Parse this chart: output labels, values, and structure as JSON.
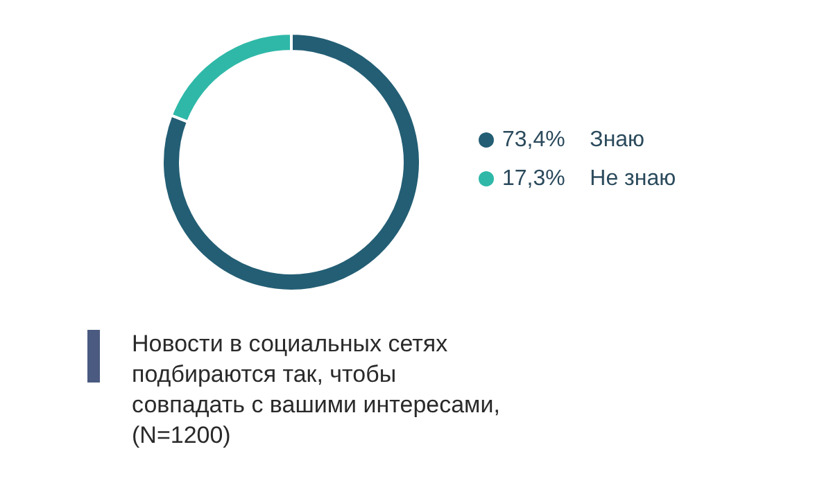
{
  "chart_data": {
    "type": "donut",
    "title": "Новости в социальных сетях подбираются так, чтобы совпадать с вашими интересами, (N=1200)",
    "categories": [
      "Знаю",
      "Не знаю"
    ],
    "values": [
      73.4,
      17.3
    ],
    "value_labels": [
      "73,4%",
      "17,3%"
    ],
    "colors": [
      "#235e74",
      "#2fb8a8"
    ],
    "legend": "right"
  }
}
